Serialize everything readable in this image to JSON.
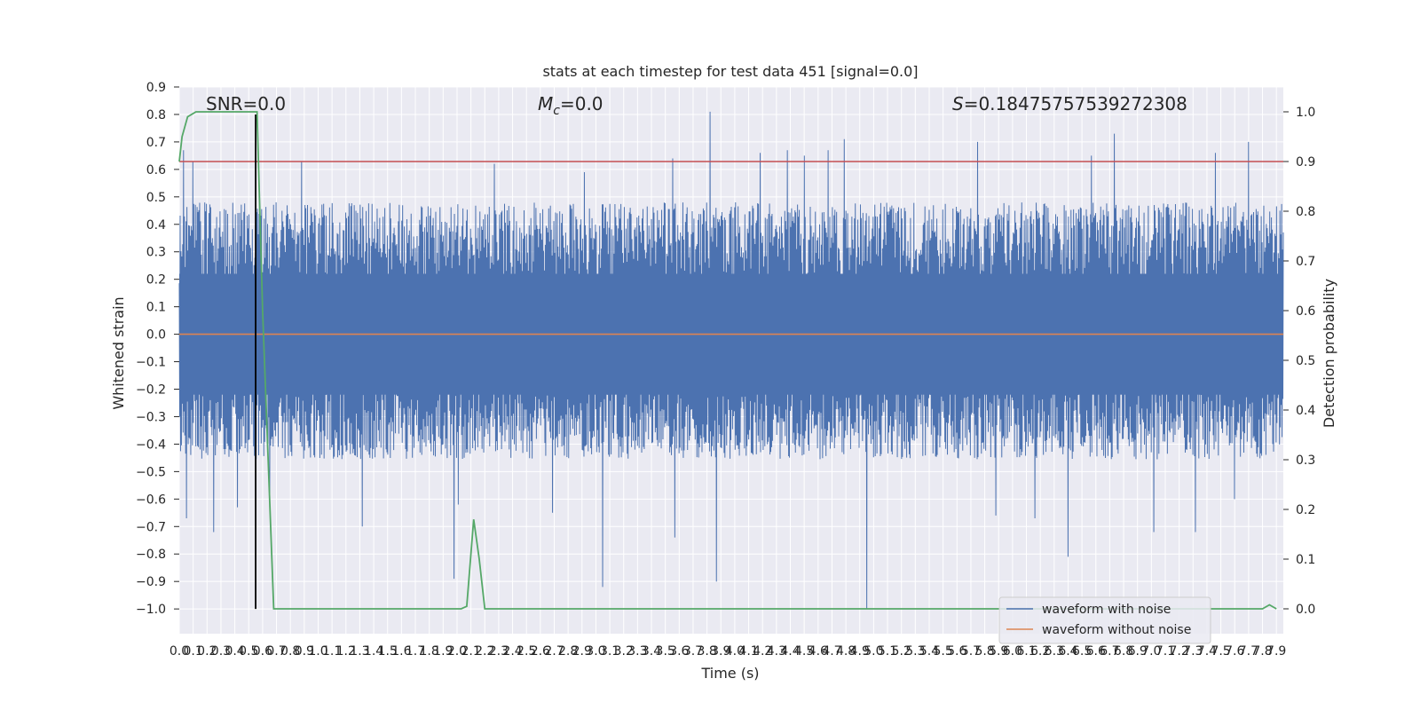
{
  "chart_data": {
    "type": "line",
    "title": "stats at each timestep for test data 451 [signal=0.0]",
    "xlabel": "Time (s)",
    "ylabel": "Whitened strain",
    "y2label": "Detection probability",
    "annotations": {
      "snr": "SNR=0.0",
      "mc_symbol": "M",
      "mc_sub": "c",
      "mc_value": "=0.0",
      "s_symbol": "S",
      "s_value": "=0.18475757539272308"
    },
    "xlim": [
      0.0,
      7.95
    ],
    "ylim": [
      -1.09,
      0.9
    ],
    "y2lim": [
      -0.05,
      1.05
    ],
    "xticks": [
      0.0,
      0.1,
      0.2,
      0.3,
      0.4,
      0.5,
      0.6,
      0.7,
      0.8,
      0.9,
      1.0,
      1.1,
      1.2,
      1.3,
      1.4,
      1.5,
      1.6,
      1.7,
      1.8,
      1.9,
      2.0,
      2.1,
      2.2,
      2.3,
      2.4,
      2.5,
      2.6,
      2.7,
      2.8,
      2.9,
      3.0,
      3.1,
      3.2,
      3.3,
      3.4,
      3.5,
      3.6,
      3.7,
      3.8,
      3.9,
      4.0,
      4.1,
      4.2,
      4.3,
      4.4,
      4.5,
      4.6,
      4.7,
      4.8,
      4.9,
      5.0,
      5.1,
      5.2,
      5.3,
      5.4,
      5.5,
      5.6,
      5.7,
      5.8,
      5.9,
      6.0,
      6.1,
      6.2,
      6.3,
      6.4,
      6.5,
      6.6,
      6.7,
      6.8,
      6.9,
      7.0,
      7.1,
      7.2,
      7.3,
      7.4,
      7.5,
      7.6,
      7.7,
      7.8,
      7.9
    ],
    "yticks": [
      0.9,
      0.8,
      0.7,
      0.6,
      0.5,
      0.4,
      0.3,
      0.2,
      0.1,
      0.0,
      -0.1,
      -0.2,
      -0.3,
      -0.4,
      -0.5,
      -0.6,
      -0.7,
      -0.8,
      -0.9,
      -1.0
    ],
    "y2ticks": [
      1.0,
      0.9,
      0.8,
      0.7,
      0.6,
      0.5,
      0.4,
      0.3,
      0.2,
      0.1,
      0.0
    ],
    "threshold": 0.9,
    "marker_time": 0.55,
    "noise_envelope": {
      "positive_typical": 0.4,
      "negative_typical": -0.38,
      "core": 0.22
    },
    "noise_spikes": [
      {
        "x": 0.03,
        "y": 0.67
      },
      {
        "x": 0.05,
        "y": -0.67
      },
      {
        "x": 0.1,
        "y": 0.63
      },
      {
        "x": 0.25,
        "y": -0.72
      },
      {
        "x": 0.42,
        "y": -0.63
      },
      {
        "x": 0.65,
        "y": -0.58
      },
      {
        "x": 0.88,
        "y": 0.63
      },
      {
        "x": 1.32,
        "y": -0.7
      },
      {
        "x": 1.98,
        "y": -0.89
      },
      {
        "x": 2.01,
        "y": -0.62
      },
      {
        "x": 2.27,
        "y": 0.62
      },
      {
        "x": 2.69,
        "y": -0.65
      },
      {
        "x": 2.92,
        "y": 0.59
      },
      {
        "x": 3.05,
        "y": -0.92
      },
      {
        "x": 3.55,
        "y": 0.64
      },
      {
        "x": 3.57,
        "y": -0.74
      },
      {
        "x": 3.82,
        "y": 0.81
      },
      {
        "x": 3.87,
        "y": -0.9
      },
      {
        "x": 4.18,
        "y": 0.66
      },
      {
        "x": 4.38,
        "y": 0.67
      },
      {
        "x": 4.5,
        "y": 0.65
      },
      {
        "x": 4.67,
        "y": 0.67
      },
      {
        "x": 4.79,
        "y": 0.71
      },
      {
        "x": 4.95,
        "y": -1.0
      },
      {
        "x": 5.75,
        "y": 0.7
      },
      {
        "x": 5.88,
        "y": -0.66
      },
      {
        "x": 6.16,
        "y": -0.67
      },
      {
        "x": 6.4,
        "y": -0.81
      },
      {
        "x": 6.57,
        "y": 0.65
      },
      {
        "x": 6.73,
        "y": 0.73
      },
      {
        "x": 7.02,
        "y": -0.72
      },
      {
        "x": 7.32,
        "y": -0.72
      },
      {
        "x": 7.46,
        "y": 0.66
      },
      {
        "x": 7.6,
        "y": -0.6
      },
      {
        "x": 7.7,
        "y": 0.7
      }
    ],
    "series": [
      {
        "name": "waveform with noise",
        "color": "#4c72b0"
      },
      {
        "name": "waveform without noise",
        "color": "#dd8452",
        "values": [
          0.0,
          0.0
        ]
      },
      {
        "color": "#55a868",
        "axis": "right",
        "x": [
          0.0,
          0.02,
          0.06,
          0.12,
          0.2,
          0.3,
          0.4,
          0.5,
          0.54,
          0.56,
          0.6,
          0.62,
          0.68,
          0.8,
          1.0,
          1.2,
          1.4,
          1.6,
          1.8,
          2.0,
          2.03,
          2.07,
          2.12,
          2.16,
          2.2,
          2.3,
          2.5,
          3.0,
          4.0,
          5.0,
          6.0,
          7.0,
          7.75,
          7.8,
          7.85,
          7.9
        ],
        "values": [
          0.9,
          0.95,
          0.99,
          1.0,
          1.0,
          1.0,
          1.0,
          1.0,
          1.0,
          1.0,
          0.6,
          0.45,
          0.0,
          0.0,
          0.0,
          0.0,
          0.0,
          0.0,
          0.0,
          0.0,
          0.0,
          0.005,
          0.18,
          0.1,
          0.0,
          0.0,
          0.0,
          0.0,
          0.0,
          0.0,
          0.0,
          0.0,
          0.0,
          0.0,
          0.008,
          0.0
        ]
      },
      {
        "color": "#c44e52",
        "axis": "right",
        "values": [
          0.9,
          0.9
        ]
      },
      {
        "color": "#000000",
        "values": [
          -1.0,
          0.8
        ]
      }
    ],
    "legend": {
      "location": "lower-right",
      "entries": [
        "waveform with noise",
        "waveform without noise"
      ]
    },
    "colors": {
      "background": "#eaeaf2",
      "grid": "#ffffff",
      "noise": "#4c72b0",
      "clean": "#dd8452",
      "probability": "#55a868",
      "threshold": "#c44e52",
      "marker": "#000000"
    }
  }
}
